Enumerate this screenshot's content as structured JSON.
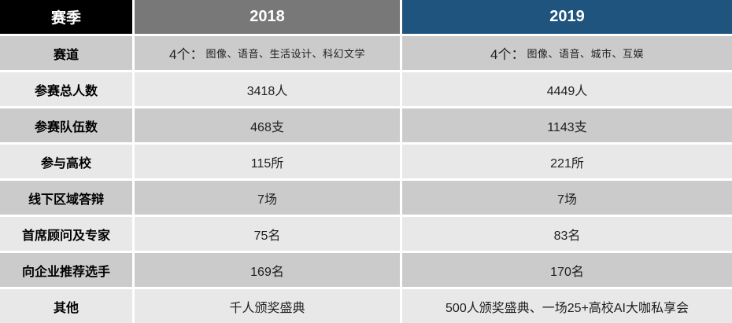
{
  "table": {
    "header": {
      "season": "赛季",
      "y2018": "2018",
      "y2019": "2019"
    },
    "rows": [
      {
        "label": "赛道",
        "y2018": {
          "prefix": "4个：",
          "detail": "图像、语音、生活设计、科幻文学"
        },
        "y2019": {
          "prefix": "4个：",
          "detail": "图像、语音、城市、互娱"
        }
      },
      {
        "label": "参赛总人数",
        "y2018": {
          "text": "3418人"
        },
        "y2019": {
          "text": "4449人"
        }
      },
      {
        "label": "参赛队伍数",
        "y2018": {
          "text": "468支"
        },
        "y2019": {
          "text": "1143支"
        }
      },
      {
        "label": "参与高校",
        "y2018": {
          "text": "115所"
        },
        "y2019": {
          "text": "221所"
        }
      },
      {
        "label": "线下区域答辩",
        "y2018": {
          "text": "7场"
        },
        "y2019": {
          "text": "7场"
        }
      },
      {
        "label": "首席顾问及专家",
        "y2018": {
          "text": "75名"
        },
        "y2019": {
          "text": "83名"
        }
      },
      {
        "label": "向企业推荐选手",
        "y2018": {
          "text": "169名"
        },
        "y2019": {
          "text": "170名"
        }
      },
      {
        "label": "其他",
        "y2018": {
          "text": "千人颁奖盛典"
        },
        "y2019": {
          "text": "500人颁奖盛典、一场25+高校AI大咖私享会"
        }
      }
    ],
    "colors": {
      "header_season_bg": "#000000",
      "header_2018_bg": "#787878",
      "header_2019_bg": "#1E547E",
      "row_band_dark": "#CBCBCB",
      "row_band_light": "#E8E8E8",
      "separator": "#FFFFFF",
      "header_text": "#FFFFFF",
      "body_text": "#1F1F1F"
    }
  },
  "chart_data": {
    "type": "table",
    "title": "",
    "columns": [
      "赛季",
      "2018",
      "2019"
    ],
    "rows": [
      [
        "赛道",
        "4个：图像、语音、生活设计、科幻文学",
        "4个：图像、语音、城市、互娱"
      ],
      [
        "参赛总人数",
        "3418人",
        "4449人"
      ],
      [
        "参赛队伍数",
        "468支",
        "1143支"
      ],
      [
        "参与高校",
        "115所",
        "221所"
      ],
      [
        "线下区域答辩",
        "7场",
        "7场"
      ],
      [
        "首席顾问及专家",
        "75名",
        "83名"
      ],
      [
        "向企业推荐选手",
        "169名",
        "170名"
      ],
      [
        "其他",
        "千人颁奖盛典",
        "500人颁奖盛典、一场25+高校AI大咖私享会"
      ]
    ]
  }
}
